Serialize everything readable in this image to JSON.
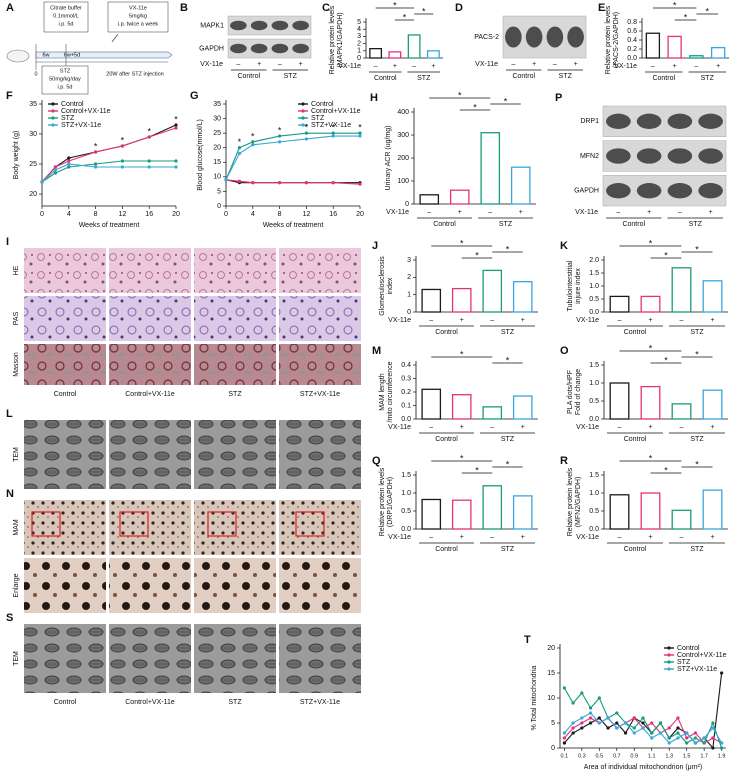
{
  "diagram": {
    "panel": "A",
    "citrate": [
      "Citrate buffer",
      "0.1mmol/L",
      "i.p. 5d"
    ],
    "vx": [
      "VX-11e",
      "5mg/kg",
      "i.p. twice a week"
    ],
    "timeline": [
      "6w",
      "6w+5d"
    ],
    "start": "0",
    "stz": [
      "STZ",
      "50mg/kg/day",
      "i.p. 5d"
    ],
    "end": "20W after STZ injection"
  },
  "blots": [
    {
      "panel": "B",
      "bands": [
        "MAPK1",
        "GAPDH"
      ],
      "row_label": "VX-11e",
      "signs": [
        "–",
        "+",
        "–",
        "+"
      ],
      "groups": [
        "Control",
        "STZ"
      ]
    },
    {
      "panel": "D",
      "bands": [
        "PACS-2"
      ],
      "row_label": "VX-11e",
      "signs": [
        "–",
        "+",
        "–",
        "+"
      ],
      "groups": [
        "Control",
        "STZ"
      ]
    },
    {
      "panel": "P",
      "bands": [
        "DRP1",
        "MFN2",
        "GAPDH"
      ],
      "row_label": "VX-11e",
      "signs": [
        "–",
        "+",
        "–",
        "+"
      ],
      "groups": [
        "Control",
        "STZ"
      ]
    }
  ],
  "micrographs": [
    {
      "panel": "I",
      "rows": [
        "HE",
        "PAS",
        "Masson"
      ],
      "columns": [
        "Control",
        "Control+VX-11e",
        "STZ",
        "STZ+VX-11e"
      ]
    },
    {
      "panel": "L",
      "rows": [
        "TEM"
      ]
    },
    {
      "panel": "N",
      "rows": [
        "MAM",
        "Enlarge"
      ]
    },
    {
      "panel": "S",
      "rows": [
        "TEM"
      ],
      "columns": [
        "Control",
        "Control+VX-11e",
        "STZ",
        "STZ+VX-11e"
      ]
    }
  ],
  "chart_data": [
    {
      "type": "bar",
      "panel": "C",
      "ylabel": [
        "Relative protein levels",
        "(MAPK1/GAPDH)"
      ],
      "categories": [
        "–",
        "+",
        "–",
        "+"
      ],
      "row_label": "VX-11e",
      "groups": [
        "Control",
        "STZ"
      ],
      "values": [
        1.3,
        0.85,
        3.2,
        1.0
      ],
      "colors": [
        "#1a1a1a",
        "#e5317a",
        "#179c7d",
        "#3aa6dd"
      ],
      "ylim": [
        0,
        5
      ],
      "yticks": [
        0,
        1,
        2,
        3,
        4,
        5
      ],
      "annotations": [
        "*",
        "*",
        "*"
      ]
    },
    {
      "type": "bar",
      "panel": "E",
      "ylabel": [
        "Relative protein levels",
        "(PACS-2/GAPDH)"
      ],
      "categories": [
        "–",
        "+",
        "–",
        "+"
      ],
      "row_label": "VX-11e",
      "groups": [
        "Control",
        "STZ"
      ],
      "values": [
        0.55,
        0.48,
        0.05,
        0.23
      ],
      "colors": [
        "#1a1a1a",
        "#e5317a",
        "#179c7d",
        "#3aa6dd"
      ],
      "ylim": [
        0,
        0.8
      ],
      "yticks": [
        {
          "value": 0,
          "label": "0.0"
        },
        0.2,
        0.4,
        0.6,
        0.8
      ],
      "annotations": [
        "*",
        "*",
        "*"
      ]
    },
    {
      "type": "line",
      "panel": "F",
      "ylabel": [
        "Body weight (g)"
      ],
      "xlabel": "Weeks of treatment",
      "x": [
        0,
        2,
        4,
        8,
        12,
        16,
        20
      ],
      "xlim": [
        0,
        20
      ],
      "xticks": [
        0,
        4,
        8,
        12,
        16,
        20
      ],
      "ylim": [
        18,
        35
      ],
      "yticks": [
        20,
        25,
        30,
        35
      ],
      "legend": "upper left",
      "series": [
        {
          "name": "Control",
          "color": "#1a1a1a",
          "values": [
            22,
            24.5,
            26,
            27,
            28,
            29.5,
            31.5
          ]
        },
        {
          "name": "Control+VX-11e",
          "color": "#e5317a",
          "values": [
            22,
            24.5,
            25.5,
            27,
            28,
            29.5,
            31
          ]
        },
        {
          "name": "STZ",
          "color": "#179c7d",
          "values": [
            22,
            23.5,
            24.5,
            25,
            25.5,
            25.5,
            25.5
          ]
        },
        {
          "name": "STZ+VX-11e",
          "color": "#3aa6dd",
          "values": [
            22,
            24,
            25,
            24.5,
            24.5,
            24.5,
            24.5
          ]
        }
      ],
      "annotations": [
        "*",
        "*",
        "*",
        "*"
      ]
    },
    {
      "type": "line",
      "panel": "G",
      "ylabel": [
        "Blood glucose(mmol/L)"
      ],
      "xlabel": "Weeks of treatment",
      "x": [
        0,
        2,
        4,
        8,
        12,
        16,
        20
      ],
      "xlim": [
        0,
        20
      ],
      "xticks": [
        0,
        4,
        8,
        12,
        16,
        20
      ],
      "ylim": [
        0,
        35
      ],
      "yticks": [
        0,
        5,
        10,
        15,
        20,
        25,
        30,
        35
      ],
      "legend": "upper right",
      "series": [
        {
          "name": "Control",
          "color": "#1a1a1a",
          "values": [
            9,
            8,
            8,
            8,
            8,
            8,
            8
          ]
        },
        {
          "name": "Control+VX-11e",
          "color": "#e5317a",
          "values": [
            9,
            8.5,
            8,
            8,
            8,
            8,
            7.5
          ]
        },
        {
          "name": "STZ",
          "color": "#179c7d",
          "values": [
            9,
            20,
            22,
            24,
            25,
            25,
            25
          ]
        },
        {
          "name": "STZ+VX-11e",
          "color": "#3aa6dd",
          "values": [
            9,
            18,
            21,
            22,
            23,
            24,
            24
          ]
        }
      ],
      "annotations": [
        "*",
        "*",
        "*",
        "*",
        "*",
        "*"
      ]
    },
    {
      "type": "bar",
      "panel": "H",
      "ylabel": [
        "Urinary ACR (ug/mg)"
      ],
      "categories": [
        "–",
        "+",
        "–",
        "+"
      ],
      "row_label": "VX-11e",
      "groups": [
        "Control",
        "STZ"
      ],
      "values": [
        40,
        60,
        310,
        160
      ],
      "colors": [
        "#1a1a1a",
        "#e5317a",
        "#179c7d",
        "#3aa6dd"
      ],
      "ylim": [
        0,
        400
      ],
      "yticks": [
        0,
        100,
        200,
        300,
        400
      ],
      "annotations": [
        "*",
        "*",
        "*"
      ]
    },
    {
      "type": "bar",
      "panel": "J",
      "ylabel": [
        "Glomerulosclerosis",
        "index"
      ],
      "categories": [
        "–",
        "+",
        "–",
        "+"
      ],
      "row_label": "VX-11e",
      "groups": [
        "Control",
        "STZ"
      ],
      "values": [
        1.3,
        1.35,
        2.4,
        1.75
      ],
      "colors": [
        "#1a1a1a",
        "#e5317a",
        "#179c7d",
        "#3aa6dd"
      ],
      "ylim": [
        0,
        3
      ],
      "yticks": [
        0,
        1,
        2,
        3
      ],
      "annotations": [
        "*",
        "*",
        "*"
      ]
    },
    {
      "type": "bar",
      "panel": "K",
      "ylabel": [
        "Tubulointerstitial",
        "injure index"
      ],
      "categories": [
        "–",
        "+",
        "–",
        "+"
      ],
      "row_label": "VX-11e",
      "groups": [
        "Control",
        "STZ"
      ],
      "values": [
        0.6,
        0.6,
        1.7,
        1.2
      ],
      "colors": [
        "#1a1a1a",
        "#e5317a",
        "#179c7d",
        "#3aa6dd"
      ],
      "ylim": [
        0,
        2
      ],
      "yticks": [
        {
          "value": 0,
          "label": "0.0"
        },
        0.5,
        {
          "value": 1,
          "label": "1.0"
        },
        1.5,
        {
          "value": 2,
          "label": "2.0"
        }
      ],
      "annotations": [
        "*",
        "*",
        "*"
      ]
    },
    {
      "type": "bar",
      "panel": "M",
      "ylabel": [
        "MAM length",
        "/mito circumference"
      ],
      "categories": [
        "–",
        "+",
        "–",
        "+"
      ],
      "row_label": "VX-11e",
      "groups": [
        "Control",
        "STZ"
      ],
      "values": [
        0.22,
        0.18,
        0.09,
        0.17
      ],
      "colors": [
        "#1a1a1a",
        "#e5317a",
        "#179c7d",
        "#3aa6dd"
      ],
      "ylim": [
        0,
        0.4
      ],
      "yticks": [
        {
          "value": 0,
          "label": "0.0"
        },
        0.1,
        0.2,
        0.3,
        0.4
      ],
      "annotations": [
        "*",
        "*"
      ]
    },
    {
      "type": "bar",
      "panel": "O",
      "ylabel": [
        "PLA dots/HPF",
        "Fold of change"
      ],
      "categories": [
        "–",
        "+",
        "–",
        "+"
      ],
      "row_label": "VX-11e",
      "groups": [
        "Control",
        "STZ"
      ],
      "values": [
        1.0,
        0.9,
        0.42,
        0.8
      ],
      "colors": [
        "#1a1a1a",
        "#e5317a",
        "#179c7d",
        "#3aa6dd"
      ],
      "ylim": [
        0,
        1.5
      ],
      "yticks": [
        {
          "value": 0,
          "label": "0.0"
        },
        0.5,
        {
          "value": 1,
          "label": "1.0"
        },
        1.5
      ],
      "annotations": [
        "*",
        "*",
        "*"
      ]
    },
    {
      "type": "bar",
      "panel": "Q",
      "ylabel": [
        "Relative protein levels",
        "(DRP1/GAPDH)"
      ],
      "categories": [
        "–",
        "+",
        "–",
        "+"
      ],
      "row_label": "VX-11e",
      "groups": [
        "Control",
        "STZ"
      ],
      "values": [
        0.82,
        0.8,
        1.2,
        0.92
      ],
      "colors": [
        "#1a1a1a",
        "#e5317a",
        "#179c7d",
        "#3aa6dd"
      ],
      "ylim": [
        0,
        1.5
      ],
      "yticks": [
        {
          "value": 0,
          "label": "0.0"
        },
        0.5,
        {
          "value": 1,
          "label": "1.0"
        },
        1.5
      ],
      "annotations": [
        "*",
        "*",
        "*"
      ]
    },
    {
      "type": "bar",
      "panel": "R",
      "ylabel": [
        "Relative protein levels",
        "(MFN2/GAPDH)"
      ],
      "categories": [
        "–",
        "+",
        "–",
        "+"
      ],
      "row_label": "VX-11e",
      "groups": [
        "Control",
        "STZ"
      ],
      "values": [
        0.95,
        1.0,
        0.52,
        1.08
      ],
      "colors": [
        "#1a1a1a",
        "#e5317a",
        "#179c7d",
        "#3aa6dd"
      ],
      "ylim": [
        0,
        1.5
      ],
      "yticks": [
        {
          "value": 0,
          "label": "0.0"
        },
        0.5,
        {
          "value": 1,
          "label": "1.0"
        },
        1.5
      ],
      "annotations": [
        "*",
        "*",
        "*"
      ]
    },
    {
      "type": "line",
      "panel": "T",
      "ylabel": [
        "% Total mitochondria"
      ],
      "xlabel": "Area of individual mitochondrion (μm²)",
      "x": [
        0.1,
        0.2,
        0.3,
        0.4,
        0.5,
        0.6,
        0.7,
        0.8,
        0.9,
        1.0,
        1.1,
        1.2,
        1.3,
        1.4,
        1.5,
        1.6,
        1.7,
        1.8,
        1.9
      ],
      "xlim": [
        0.05,
        1.95
      ],
      "xticks": [
        0.1,
        0.3,
        0.5,
        0.7,
        0.9,
        1.1,
        1.3,
        1.5,
        1.7,
        1.9
      ],
      "ylim": [
        0,
        20
      ],
      "yticks": [
        0,
        5,
        10,
        15,
        20
      ],
      "legend": "upper right",
      "series": [
        {
          "name": "Control",
          "color": "#1a1a1a",
          "values": [
            1,
            3,
            4,
            5,
            6,
            4,
            5,
            3,
            6,
            5,
            3,
            5,
            2,
            4,
            3,
            1,
            2,
            0,
            15
          ]
        },
        {
          "name": "Control+VX-11e",
          "color": "#e5317a",
          "values": [
            2,
            4,
            5,
            6,
            5,
            6,
            4,
            5,
            6,
            4,
            5,
            3,
            4,
            6,
            2,
            3,
            1,
            2,
            1
          ]
        },
        {
          "name": "STZ",
          "color": "#179c7d",
          "values": [
            12,
            9,
            11,
            8,
            10,
            6,
            7,
            5,
            4,
            6,
            3,
            5,
            2,
            3,
            1,
            2,
            1,
            5,
            0
          ]
        },
        {
          "name": "STZ+VX-11e",
          "color": "#3aa6dd",
          "values": [
            3,
            5,
            6,
            7,
            5,
            6,
            4,
            5,
            3,
            4,
            2,
            3,
            1,
            2,
            3,
            1,
            2,
            4,
            1
          ]
        }
      ],
      "annotations": []
    }
  ]
}
